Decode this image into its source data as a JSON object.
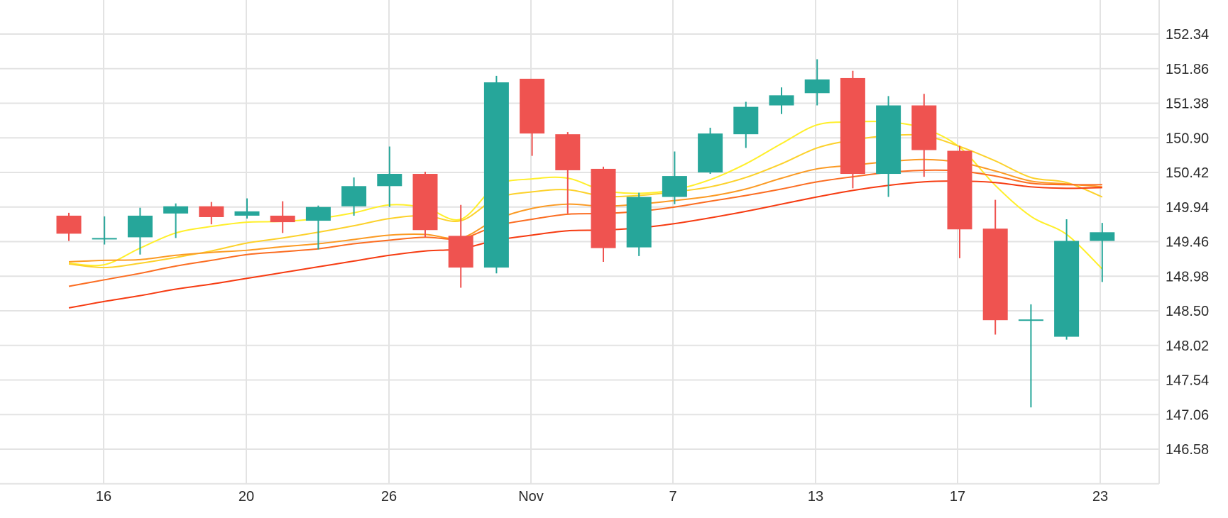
{
  "chart_data": {
    "type": "candlestick",
    "x_tick_labels": [
      "16",
      "20",
      "26",
      "Nov",
      "7",
      "13",
      "17",
      "23"
    ],
    "y_tick_labels": [
      "152.34",
      "151.86",
      "151.38",
      "150.90",
      "150.42",
      "149.94",
      "149.46",
      "148.98",
      "148.50",
      "148.02",
      "147.54",
      "147.06",
      "146.58"
    ],
    "ylim": [
      146.1,
      152.58
    ],
    "grid": true,
    "colors": {
      "up": "#26a69a",
      "down": "#ef5350"
    },
    "candles": [
      {
        "open": 149.82,
        "high": 149.86,
        "low": 149.47,
        "close": 149.57
      },
      {
        "open": 149.5,
        "high": 149.81,
        "low": 149.42,
        "close": 149.5
      },
      {
        "open": 149.52,
        "high": 149.93,
        "low": 149.28,
        "close": 149.82
      },
      {
        "open": 149.85,
        "high": 149.99,
        "low": 149.51,
        "close": 149.95
      },
      {
        "open": 149.95,
        "high": 150.01,
        "low": 149.7,
        "close": 149.8
      },
      {
        "open": 149.82,
        "high": 150.06,
        "low": 149.78,
        "close": 149.88
      },
      {
        "open": 149.82,
        "high": 150.02,
        "low": 149.58,
        "close": 149.73
      },
      {
        "open": 149.75,
        "high": 149.96,
        "low": 149.35,
        "close": 149.94
      },
      {
        "open": 149.95,
        "high": 150.35,
        "low": 149.82,
        "close": 150.23
      },
      {
        "open": 150.23,
        "high": 150.78,
        "low": 149.94,
        "close": 150.4
      },
      {
        "open": 150.4,
        "high": 150.43,
        "low": 149.52,
        "close": 149.62
      },
      {
        "open": 149.54,
        "high": 149.97,
        "low": 148.82,
        "close": 149.1
      },
      {
        "open": 149.1,
        "high": 151.76,
        "low": 149.02,
        "close": 151.67
      },
      {
        "open": 151.72,
        "high": 151.72,
        "low": 150.65,
        "close": 150.96
      },
      {
        "open": 150.95,
        "high": 150.98,
        "low": 149.85,
        "close": 150.45
      },
      {
        "open": 150.47,
        "high": 150.5,
        "low": 149.18,
        "close": 149.37
      },
      {
        "open": 149.38,
        "high": 150.14,
        "low": 149.26,
        "close": 150.08
      },
      {
        "open": 150.08,
        "high": 150.71,
        "low": 149.98,
        "close": 150.37
      },
      {
        "open": 150.42,
        "high": 151.04,
        "low": 150.4,
        "close": 150.96
      },
      {
        "open": 150.95,
        "high": 151.4,
        "low": 150.76,
        "close": 151.33
      },
      {
        "open": 151.35,
        "high": 151.6,
        "low": 151.23,
        "close": 151.49
      },
      {
        "open": 151.52,
        "high": 151.99,
        "low": 151.35,
        "close": 151.71
      },
      {
        "open": 151.73,
        "high": 151.83,
        "low": 150.2,
        "close": 150.4
      },
      {
        "open": 150.4,
        "high": 151.48,
        "low": 150.08,
        "close": 151.35
      },
      {
        "open": 151.35,
        "high": 151.51,
        "low": 150.36,
        "close": 150.73
      },
      {
        "open": 150.72,
        "high": 150.79,
        "low": 149.23,
        "close": 149.63
      },
      {
        "open": 149.64,
        "high": 150.04,
        "low": 148.17,
        "close": 148.37
      },
      {
        "open": 148.37,
        "high": 148.59,
        "low": 147.16,
        "close": 148.37
      },
      {
        "open": 148.14,
        "high": 149.77,
        "low": 148.1,
        "close": 149.47
      },
      {
        "open": 149.47,
        "high": 149.72,
        "low": 148.9,
        "close": 149.59
      }
    ],
    "series": [
      {
        "color": "#ffef2a",
        "values": [
          149.16,
          149.14,
          149.37,
          149.58,
          149.67,
          149.73,
          149.74,
          149.78,
          149.86,
          149.97,
          149.93,
          149.77,
          150.24,
          150.33,
          150.34,
          150.17,
          150.13,
          150.18,
          150.32,
          150.54,
          150.82,
          151.08,
          151.12,
          151.12,
          151.03,
          150.77,
          150.24,
          149.81,
          149.56,
          149.08
        ]
      },
      {
        "color": "#fcd12b",
        "values": [
          149.15,
          149.1,
          149.16,
          149.24,
          149.33,
          149.44,
          149.51,
          149.59,
          149.68,
          149.78,
          149.82,
          149.75,
          150.06,
          150.15,
          150.18,
          150.09,
          150.1,
          150.15,
          150.22,
          150.35,
          150.54,
          150.76,
          150.87,
          150.93,
          150.93,
          150.78,
          150.58,
          150.35,
          150.28,
          150.08
        ]
      },
      {
        "color": "#fb9a23",
        "values": [
          149.18,
          149.2,
          149.21,
          149.27,
          149.31,
          149.34,
          149.39,
          149.43,
          149.49,
          149.55,
          149.56,
          149.51,
          149.77,
          149.92,
          149.98,
          149.95,
          149.98,
          150.03,
          150.09,
          150.19,
          150.34,
          150.47,
          150.52,
          150.57,
          150.6,
          150.56,
          150.44,
          150.3,
          150.26,
          150.22
        ]
      },
      {
        "color": "#fb6d22",
        "values": [
          148.84,
          148.93,
          149.02,
          149.12,
          149.2,
          149.28,
          149.32,
          149.36,
          149.43,
          149.48,
          149.52,
          149.5,
          149.68,
          149.77,
          149.84,
          149.85,
          149.88,
          149.94,
          150.02,
          150.1,
          150.19,
          150.29,
          150.36,
          150.42,
          150.45,
          150.44,
          150.37,
          150.27,
          150.25,
          150.25
        ]
      },
      {
        "color": "#f63b11",
        "values": [
          148.54,
          148.63,
          148.71,
          148.8,
          148.87,
          148.95,
          149.03,
          149.11,
          149.19,
          149.27,
          149.33,
          149.36,
          149.48,
          149.55,
          149.61,
          149.62,
          149.65,
          149.71,
          149.79,
          149.88,
          149.98,
          150.08,
          150.17,
          150.24,
          150.29,
          150.3,
          150.28,
          150.22,
          150.2,
          150.21
        ]
      }
    ]
  }
}
